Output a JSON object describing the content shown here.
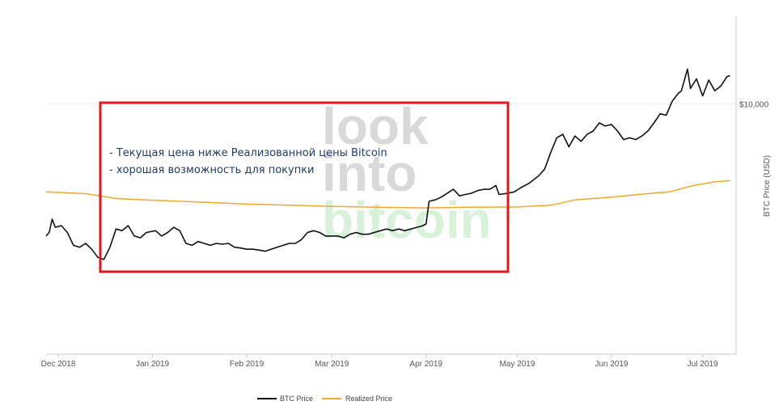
{
  "chart_data": {
    "type": "line",
    "title": "",
    "xlabel": "",
    "ylabel": "BTC Price (USD)",
    "y_scale": "log",
    "ylim": [
      1600,
      19000
    ],
    "xlim": [
      "2018-11-27",
      "2019-07-12"
    ],
    "grid": true,
    "legend_position": "bottom-center",
    "x_tick_labels": [
      {
        "date": "2018-12-01",
        "label": "Dec 2018"
      },
      {
        "date": "2019-01-01",
        "label": "Jan 2019"
      },
      {
        "date": "2019-02-01",
        "label": "Feb 2019"
      },
      {
        "date": "2019-03-01",
        "label": "Mar 2019"
      },
      {
        "date": "2019-04-01",
        "label": "Apr 2019"
      },
      {
        "date": "2019-05-01",
        "label": "May 2019"
      },
      {
        "date": "2019-06-01",
        "label": "Jun 2019"
      },
      {
        "date": "2019-07-01",
        "label": "Jul 2019"
      }
    ],
    "y_tick_labels": [
      {
        "value": 10000,
        "label": "$10,000"
      }
    ],
    "series": [
      {
        "name": "BTC Price",
        "color": "#111111",
        "points": [
          [
            "2018-11-27",
            3800
          ],
          [
            "2018-11-28",
            3900
          ],
          [
            "2018-11-29",
            4300
          ],
          [
            "2018-11-30",
            4050
          ],
          [
            "2018-12-02",
            4100
          ],
          [
            "2018-12-04",
            3900
          ],
          [
            "2018-12-06",
            3550
          ],
          [
            "2018-12-08",
            3500
          ],
          [
            "2018-12-10",
            3600
          ],
          [
            "2018-12-12",
            3450
          ],
          [
            "2018-12-14",
            3250
          ],
          [
            "2018-12-16",
            3200
          ],
          [
            "2018-12-18",
            3500
          ],
          [
            "2018-12-20",
            4000
          ],
          [
            "2018-12-22",
            3950
          ],
          [
            "2018-12-24",
            4100
          ],
          [
            "2018-12-26",
            3800
          ],
          [
            "2018-12-28",
            3750
          ],
          [
            "2018-12-30",
            3900
          ],
          [
            "2019-01-02",
            3950
          ],
          [
            "2019-01-04",
            3800
          ],
          [
            "2019-01-06",
            3900
          ],
          [
            "2019-01-08",
            4050
          ],
          [
            "2019-01-10",
            3950
          ],
          [
            "2019-01-12",
            3600
          ],
          [
            "2019-01-14",
            3550
          ],
          [
            "2019-01-16",
            3650
          ],
          [
            "2019-01-18",
            3600
          ],
          [
            "2019-01-20",
            3550
          ],
          [
            "2019-01-22",
            3600
          ],
          [
            "2019-01-24",
            3580
          ],
          [
            "2019-01-26",
            3600
          ],
          [
            "2019-01-28",
            3500
          ],
          [
            "2019-01-30",
            3480
          ],
          [
            "2019-02-01",
            3450
          ],
          [
            "2019-02-03",
            3450
          ],
          [
            "2019-02-05",
            3430
          ],
          [
            "2019-02-07",
            3400
          ],
          [
            "2019-02-09",
            3450
          ],
          [
            "2019-02-11",
            3500
          ],
          [
            "2019-02-13",
            3550
          ],
          [
            "2019-02-15",
            3600
          ],
          [
            "2019-02-17",
            3600
          ],
          [
            "2019-02-19",
            3700
          ],
          [
            "2019-02-21",
            3900
          ],
          [
            "2019-02-23",
            3950
          ],
          [
            "2019-02-25",
            3900
          ],
          [
            "2019-02-27",
            3800
          ],
          [
            "2019-03-01",
            3800
          ],
          [
            "2019-03-03",
            3800
          ],
          [
            "2019-03-05",
            3750
          ],
          [
            "2019-03-07",
            3850
          ],
          [
            "2019-03-09",
            3900
          ],
          [
            "2019-03-11",
            3850
          ],
          [
            "2019-03-13",
            3850
          ],
          [
            "2019-03-15",
            3900
          ],
          [
            "2019-03-17",
            3950
          ],
          [
            "2019-03-19",
            4000
          ],
          [
            "2019-03-21",
            3950
          ],
          [
            "2019-03-23",
            4000
          ],
          [
            "2019-03-25",
            3950
          ],
          [
            "2019-03-27",
            4000
          ],
          [
            "2019-03-29",
            4050
          ],
          [
            "2019-03-31",
            4100
          ],
          [
            "2019-04-01",
            4150
          ],
          [
            "2019-04-02",
            4900
          ],
          [
            "2019-04-04",
            4950
          ],
          [
            "2019-04-06",
            5050
          ],
          [
            "2019-04-08",
            5200
          ],
          [
            "2019-04-10",
            5350
          ],
          [
            "2019-04-12",
            5100
          ],
          [
            "2019-04-14",
            5150
          ],
          [
            "2019-04-16",
            5200
          ],
          [
            "2019-04-18",
            5300
          ],
          [
            "2019-04-20",
            5350
          ],
          [
            "2019-04-22",
            5350
          ],
          [
            "2019-04-24",
            5500
          ],
          [
            "2019-04-25",
            5150
          ],
          [
            "2019-04-28",
            5200
          ],
          [
            "2019-04-30",
            5250
          ],
          [
            "2019-05-02",
            5400
          ],
          [
            "2019-05-05",
            5600
          ],
          [
            "2019-05-08",
            5900
          ],
          [
            "2019-05-10",
            6200
          ],
          [
            "2019-05-12",
            7000
          ],
          [
            "2019-05-14",
            7800
          ],
          [
            "2019-05-16",
            8000
          ],
          [
            "2019-05-18",
            7300
          ],
          [
            "2019-05-20",
            7900
          ],
          [
            "2019-05-22",
            7600
          ],
          [
            "2019-05-24",
            8000
          ],
          [
            "2019-05-26",
            8200
          ],
          [
            "2019-05-28",
            8700
          ],
          [
            "2019-05-30",
            8500
          ],
          [
            "2019-06-01",
            8600
          ],
          [
            "2019-06-03",
            8200
          ],
          [
            "2019-06-05",
            7700
          ],
          [
            "2019-06-07",
            7800
          ],
          [
            "2019-06-09",
            7700
          ],
          [
            "2019-06-11",
            7900
          ],
          [
            "2019-06-13",
            8200
          ],
          [
            "2019-06-15",
            8700
          ],
          [
            "2019-06-17",
            9300
          ],
          [
            "2019-06-19",
            9200
          ],
          [
            "2019-06-21",
            10200
          ],
          [
            "2019-06-23",
            10800
          ],
          [
            "2019-06-24",
            11000
          ],
          [
            "2019-06-26",
            12900
          ],
          [
            "2019-06-27",
            11200
          ],
          [
            "2019-06-29",
            12000
          ],
          [
            "2019-07-01",
            10600
          ],
          [
            "2019-07-03",
            11900
          ],
          [
            "2019-07-05",
            11000
          ],
          [
            "2019-07-07",
            11400
          ],
          [
            "2019-07-09",
            12200
          ],
          [
            "2019-07-10",
            12300
          ]
        ]
      },
      {
        "name": "Realized Price",
        "color": "#f0a830",
        "points": [
          [
            "2018-11-27",
            5250
          ],
          [
            "2018-12-10",
            5180
          ],
          [
            "2018-12-20",
            5000
          ],
          [
            "2019-01-01",
            4940
          ],
          [
            "2019-01-15",
            4880
          ],
          [
            "2019-02-01",
            4800
          ],
          [
            "2019-02-15",
            4760
          ],
          [
            "2019-03-01",
            4720
          ],
          [
            "2019-03-15",
            4690
          ],
          [
            "2019-04-01",
            4670
          ],
          [
            "2019-04-15",
            4690
          ],
          [
            "2019-05-01",
            4700
          ],
          [
            "2019-05-12",
            4760
          ],
          [
            "2019-05-20",
            4950
          ],
          [
            "2019-06-01",
            5050
          ],
          [
            "2019-06-10",
            5150
          ],
          [
            "2019-06-20",
            5250
          ],
          [
            "2019-06-28",
            5500
          ],
          [
            "2019-07-05",
            5650
          ],
          [
            "2019-07-10",
            5700
          ]
        ]
      }
    ]
  },
  "annotation": {
    "color": "#e8161b",
    "lines": [
      "- Текущая цена ниже Реализованной цены Bitcoin",
      "- хорошая возможность для покупки"
    ]
  },
  "watermark": {
    "words": [
      "look",
      "into",
      "bitcoin"
    ]
  },
  "legend": {
    "items": [
      {
        "label": "BTC Price",
        "color": "#111111"
      },
      {
        "label": "Realized Price",
        "color": "#f0a830"
      }
    ]
  }
}
